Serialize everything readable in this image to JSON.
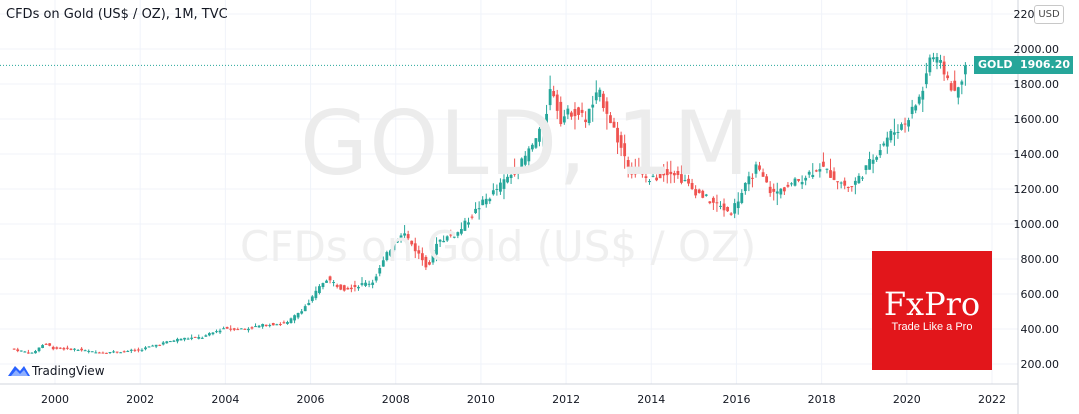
{
  "header": {
    "title": "CFDs on Gold (US$ / OZ), 1M, TVC",
    "currency_button": "USD"
  },
  "watermark": {
    "symbol": "GOLD, 1M",
    "description": "CFDs on Gold (US$ / OZ)"
  },
  "price_tag": {
    "symbol": "GOLD",
    "price": "1906.20",
    "color": "#26a69a"
  },
  "branding": {
    "tradingview_label": "TradingView",
    "fxpro_name": "FxPro",
    "fxpro_tagline": "Trade Like a Pro",
    "fxpro_color": "#e2161b"
  },
  "colors": {
    "up": "#26a69a",
    "down": "#ef5350",
    "grid": "#f0f3fa",
    "axis_text": "#131722"
  },
  "chart_data": {
    "type": "candlestick",
    "interval": "1M",
    "title": "CFDs on Gold (US$ / OZ), 1M, TVC",
    "xlabel": "",
    "ylabel": "",
    "x_ticks": [
      "2000",
      "2002",
      "2004",
      "2006",
      "2008",
      "2010",
      "2012",
      "2014",
      "2016",
      "2018",
      "2020",
      "2022"
    ],
    "y_ticks": [
      "200.00",
      "400.00",
      "600.00",
      "800.00",
      "1000.00",
      "1200.00",
      "1400.00",
      "1600.00",
      "1800.00",
      "2000.00",
      "2200.00"
    ],
    "ylim": [
      110,
      2215
    ],
    "xlim": [
      1999.0,
      2022.6
    ],
    "last_price": 1906.2,
    "grid": true,
    "series": [
      {
        "name": "GOLD",
        "points": [
          {
            "x": 1999.0,
            "y": 288
          },
          {
            "x": 1999.5,
            "y": 260
          },
          {
            "x": 1999.8,
            "y": 320
          },
          {
            "x": 2000.0,
            "y": 290
          },
          {
            "x": 2000.5,
            "y": 285
          },
          {
            "x": 2001.0,
            "y": 266
          },
          {
            "x": 2001.5,
            "y": 270
          },
          {
            "x": 2002.0,
            "y": 280
          },
          {
            "x": 2002.5,
            "y": 315
          },
          {
            "x": 2003.0,
            "y": 345
          },
          {
            "x": 2003.5,
            "y": 352
          },
          {
            "x": 2004.0,
            "y": 405
          },
          {
            "x": 2004.5,
            "y": 400
          },
          {
            "x": 2005.0,
            "y": 425
          },
          {
            "x": 2005.5,
            "y": 435
          },
          {
            "x": 2006.0,
            "y": 550
          },
          {
            "x": 2006.4,
            "y": 690
          },
          {
            "x": 2006.8,
            "y": 630
          },
          {
            "x": 2007.0,
            "y": 640
          },
          {
            "x": 2007.5,
            "y": 670
          },
          {
            "x": 2008.0,
            "y": 900
          },
          {
            "x": 2008.2,
            "y": 960
          },
          {
            "x": 2008.8,
            "y": 750
          },
          {
            "x": 2009.0,
            "y": 900
          },
          {
            "x": 2009.5,
            "y": 950
          },
          {
            "x": 2010.0,
            "y": 1100
          },
          {
            "x": 2010.5,
            "y": 1220
          },
          {
            "x": 2011.0,
            "y": 1350
          },
          {
            "x": 2011.5,
            "y": 1550
          },
          {
            "x": 2011.7,
            "y": 1800
          },
          {
            "x": 2011.9,
            "y": 1600
          },
          {
            "x": 2012.2,
            "y": 1650
          },
          {
            "x": 2012.5,
            "y": 1600
          },
          {
            "x": 2012.8,
            "y": 1750
          },
          {
            "x": 2013.0,
            "y": 1650
          },
          {
            "x": 2013.3,
            "y": 1450
          },
          {
            "x": 2013.6,
            "y": 1300
          },
          {
            "x": 2014.0,
            "y": 1250
          },
          {
            "x": 2014.5,
            "y": 1310
          },
          {
            "x": 2015.0,
            "y": 1200
          },
          {
            "x": 2015.5,
            "y": 1120
          },
          {
            "x": 2015.9,
            "y": 1065
          },
          {
            "x": 2016.5,
            "y": 1320
          },
          {
            "x": 2016.9,
            "y": 1170
          },
          {
            "x": 2017.5,
            "y": 1250
          },
          {
            "x": 2018.0,
            "y": 1330
          },
          {
            "x": 2018.7,
            "y": 1200
          },
          {
            "x": 2019.0,
            "y": 1290
          },
          {
            "x": 2019.6,
            "y": 1500
          },
          {
            "x": 2020.0,
            "y": 1580
          },
          {
            "x": 2020.4,
            "y": 1750
          },
          {
            "x": 2020.6,
            "y": 1970
          },
          {
            "x": 2020.9,
            "y": 1880
          },
          {
            "x": 2021.2,
            "y": 1730
          },
          {
            "x": 2021.4,
            "y": 1906
          }
        ]
      }
    ]
  }
}
